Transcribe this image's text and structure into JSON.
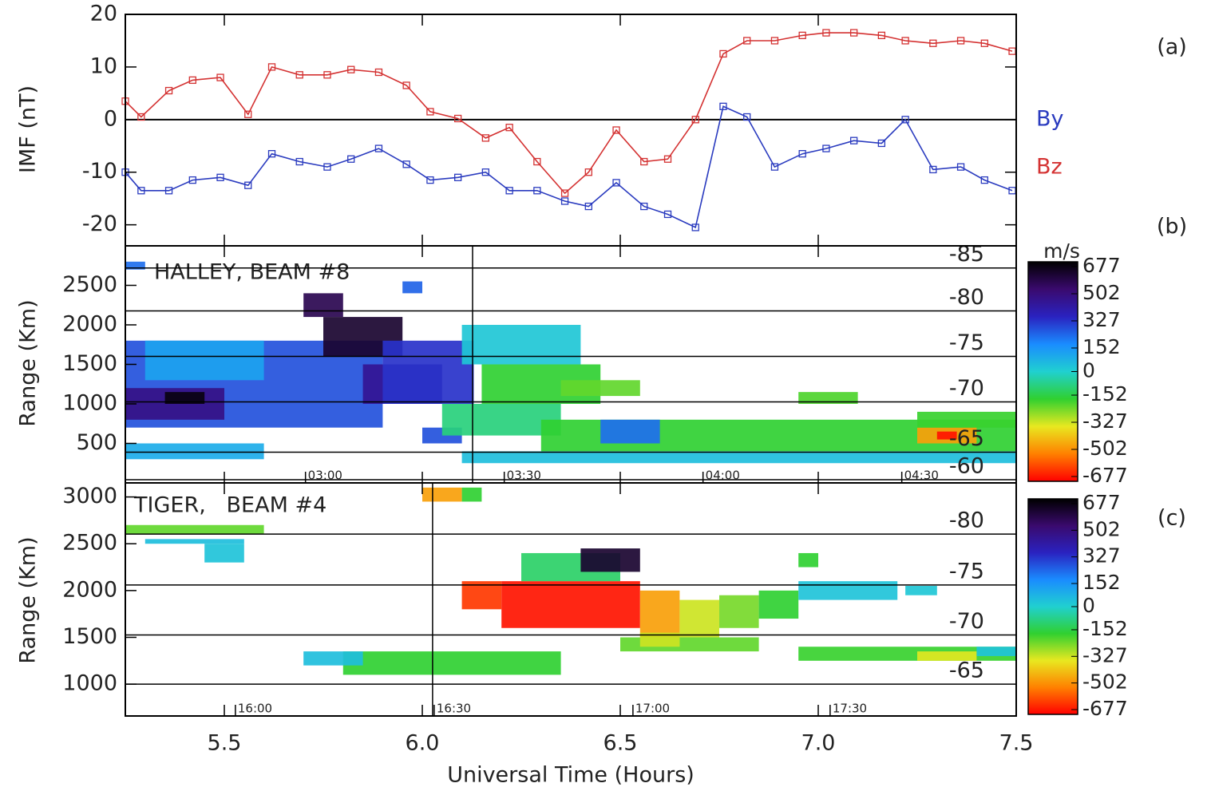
{
  "chart_data": [
    {
      "type": "line",
      "panel_label": "(a)",
      "ylabel": "IMF (nT)",
      "xlabel": "Universal Time (Hours)",
      "x": [
        5.25,
        5.29,
        5.36,
        5.42,
        5.49,
        5.56,
        5.62,
        5.69,
        5.76,
        5.82,
        5.89,
        5.96,
        6.02,
        6.09,
        6.16,
        6.22,
        6.29,
        6.36,
        6.42,
        6.49,
        6.56,
        6.62,
        6.69,
        6.76,
        6.82,
        6.89,
        6.96,
        7.02,
        7.09,
        7.16,
        7.22,
        7.29,
        7.36,
        7.42,
        7.49
      ],
      "series": [
        {
          "name": "By",
          "color": "#2a3bbf",
          "values": [
            -10,
            -13.5,
            -13.5,
            -11.5,
            -11,
            -12.5,
            -6.5,
            -8,
            -9,
            -7.5,
            -5.5,
            -8.5,
            -11.5,
            -11,
            -10,
            -13.5,
            -13.5,
            -15.5,
            -16.5,
            -12,
            -16.5,
            -18,
            -20.5,
            2.5,
            0.5,
            -9,
            -6.5,
            -5.5,
            -4,
            -4.5,
            0,
            -9.5,
            -9,
            -11.5,
            -13.5
          ]
        },
        {
          "name": "Bz",
          "color": "#d43232",
          "values": [
            3.5,
            0.5,
            5.5,
            7.5,
            8,
            1,
            10,
            8.5,
            8.5,
            9.5,
            9,
            6.5,
            1.5,
            0.2,
            -3.5,
            -1.5,
            -8,
            -14,
            -10,
            -2,
            -8,
            -7.5,
            0,
            12.5,
            15,
            15,
            16,
            16.5,
            16.5,
            16,
            15,
            14.5,
            15,
            14.5,
            13
          ]
        }
      ],
      "xlim": [
        5.25,
        7.5
      ],
      "xticks": [
        5.5,
        {
          "value": 6,
          "label": "6.0"
        },
        6.5,
        {
          "value": 7,
          "label": "7.0"
        },
        7.5
      ],
      "ylim": [
        -24,
        20
      ],
      "yticks": [
        -20,
        -10,
        0,
        10,
        20
      ],
      "hline": 0
    },
    {
      "type": "radar",
      "panel_label": "(b)",
      "title": "HALLEY, BEAM #8",
      "ylabel": "Range (Km)",
      "ylim": [
        0,
        3000
      ],
      "yticks": [
        500,
        1000,
        1500,
        2000,
        2500
      ],
      "colorbar_label": "m/s",
      "colorbar_ticks": [
        677,
        502,
        327,
        152,
        0,
        -152,
        -327,
        -502,
        -677
      ],
      "colors": [
        "#000000",
        "#3a0a6e",
        "#2a22c0",
        "#1a8cff",
        "#20d0d0",
        "#30d030",
        "#e8e820",
        "#ff8000",
        "#ff0000"
      ],
      "lat_lines": [
        {
          "lat": -85,
          "range": 2720
        },
        {
          "lat": -80,
          "range": 2177
        },
        {
          "lat": -75,
          "range": 1601
        },
        {
          "lat": -70,
          "range": 1025
        },
        {
          "lat": -65,
          "range": 389
        },
        {
          "lat": -60,
          "range": 40
        }
      ],
      "local_time_ticks": [
        {
          "value": 5.705,
          "label": "03:00"
        },
        {
          "value": 6.207,
          "label": "03:30"
        },
        {
          "value": 6.709,
          "label": "04:00"
        },
        {
          "value": 7.211,
          "label": "04:30"
        }
      ],
      "vline": 6.127,
      "cells": [
        [
          5.25,
          5.9,
          700,
          1800,
          250
        ],
        [
          5.3,
          5.6,
          1300,
          1800,
          100
        ],
        [
          5.25,
          5.5,
          800,
          1200,
          450
        ],
        [
          5.35,
          5.45,
          1000,
          1150,
          650
        ],
        [
          5.75,
          5.95,
          1600,
          2100,
          600
        ],
        [
          5.85,
          6.05,
          1000,
          1500,
          420
        ],
        [
          5.9,
          6.13,
          1000,
          1800,
          300
        ],
        [
          5.7,
          5.8,
          2100,
          2400,
          550
        ],
        [
          5.25,
          5.6,
          300,
          500,
          80
        ],
        [
          6.0,
          6.1,
          500,
          700,
          250
        ],
        [
          6.1,
          6.4,
          1500,
          2000,
          20
        ],
        [
          6.15,
          6.45,
          1000,
          1500,
          -150
        ],
        [
          6.05,
          6.35,
          600,
          1000,
          -80
        ],
        [
          6.35,
          6.55,
          1100,
          1300,
          -200
        ],
        [
          6.3,
          7.5,
          400,
          800,
          -150
        ],
        [
          6.1,
          7.5,
          250,
          400,
          40
        ],
        [
          7.25,
          7.4,
          500,
          700,
          -450
        ],
        [
          7.3,
          7.35,
          550,
          650,
          -650
        ],
        [
          6.95,
          7.1,
          1000,
          1150,
          -180
        ],
        [
          7.25,
          7.5,
          700,
          900,
          -160
        ],
        [
          6.45,
          6.6,
          500,
          800,
          200
        ],
        [
          5.25,
          5.3,
          2700,
          2800,
          200
        ],
        [
          5.95,
          6.0,
          2400,
          2550,
          220
        ]
      ]
    },
    {
      "type": "radar",
      "panel_label": "(c)",
      "title": "TIGER,   BEAM #4",
      "ylabel": "Range (Km)",
      "ylim": [
        660,
        3150
      ],
      "yticks": [
        1000,
        1500,
        2000,
        2500,
        3000
      ],
      "colorbar_ticks": [
        677,
        502,
        327,
        152,
        0,
        -152,
        -327,
        -502,
        -677
      ],
      "colors": [
        "#000000",
        "#3a0a6e",
        "#2a22c0",
        "#1a8cff",
        "#20d0d0",
        "#30d030",
        "#e8e820",
        "#ff8000",
        "#ff0000"
      ],
      "lat_lines": [
        {
          "lat": -80,
          "range": 2603
        },
        {
          "lat": -75,
          "range": 2060
        },
        {
          "lat": -70,
          "range": 1526
        },
        {
          "lat": -65,
          "range": 1000
        }
      ],
      "local_time_ticks": [
        {
          "value": 5.528,
          "label": "16:00"
        },
        {
          "value": 6.03,
          "label": "16:30"
        },
        {
          "value": 6.532,
          "label": "17:00"
        },
        {
          "value": 7.03,
          "label": "17:30"
        }
      ],
      "vline": 6.026,
      "cells": [
        [
          6.2,
          6.55,
          1600,
          2100,
          -650
        ],
        [
          6.1,
          6.2,
          1800,
          2100,
          -600
        ],
        [
          6.55,
          6.65,
          1500,
          2000,
          -450
        ],
        [
          6.65,
          6.75,
          1500,
          1900,
          -300
        ],
        [
          6.75,
          6.85,
          1600,
          1950,
          -220
        ],
        [
          6.85,
          6.95,
          1700,
          2000,
          -150
        ],
        [
          6.95,
          7.2,
          1900,
          2100,
          30
        ],
        [
          7.22,
          7.3,
          1950,
          2050,
          20
        ],
        [
          6.25,
          6.5,
          2100,
          2400,
          -100
        ],
        [
          6.4,
          6.55,
          2200,
          2450,
          600
        ],
        [
          5.8,
          6.35,
          1100,
          1350,
          -150
        ],
        [
          5.7,
          5.85,
          1200,
          1350,
          40
        ],
        [
          6.5,
          6.85,
          1350,
          1500,
          -200
        ],
        [
          6.55,
          6.65,
          1400,
          1550,
          -300
        ],
        [
          6.95,
          7.5,
          1250,
          1400,
          -160
        ],
        [
          7.25,
          7.4,
          1250,
          1350,
          -320
        ],
        [
          7.4,
          7.5,
          1300,
          1400,
          30
        ],
        [
          6.0,
          6.1,
          2950,
          3100,
          -450
        ],
        [
          6.1,
          6.15,
          2950,
          3100,
          -150
        ],
        [
          5.25,
          5.6,
          2600,
          2700,
          -200
        ],
        [
          5.3,
          5.55,
          2500,
          2550,
          40
        ],
        [
          5.45,
          5.55,
          2300,
          2500,
          30
        ],
        [
          6.95,
          7.0,
          2250,
          2400,
          -150
        ]
      ]
    }
  ]
}
